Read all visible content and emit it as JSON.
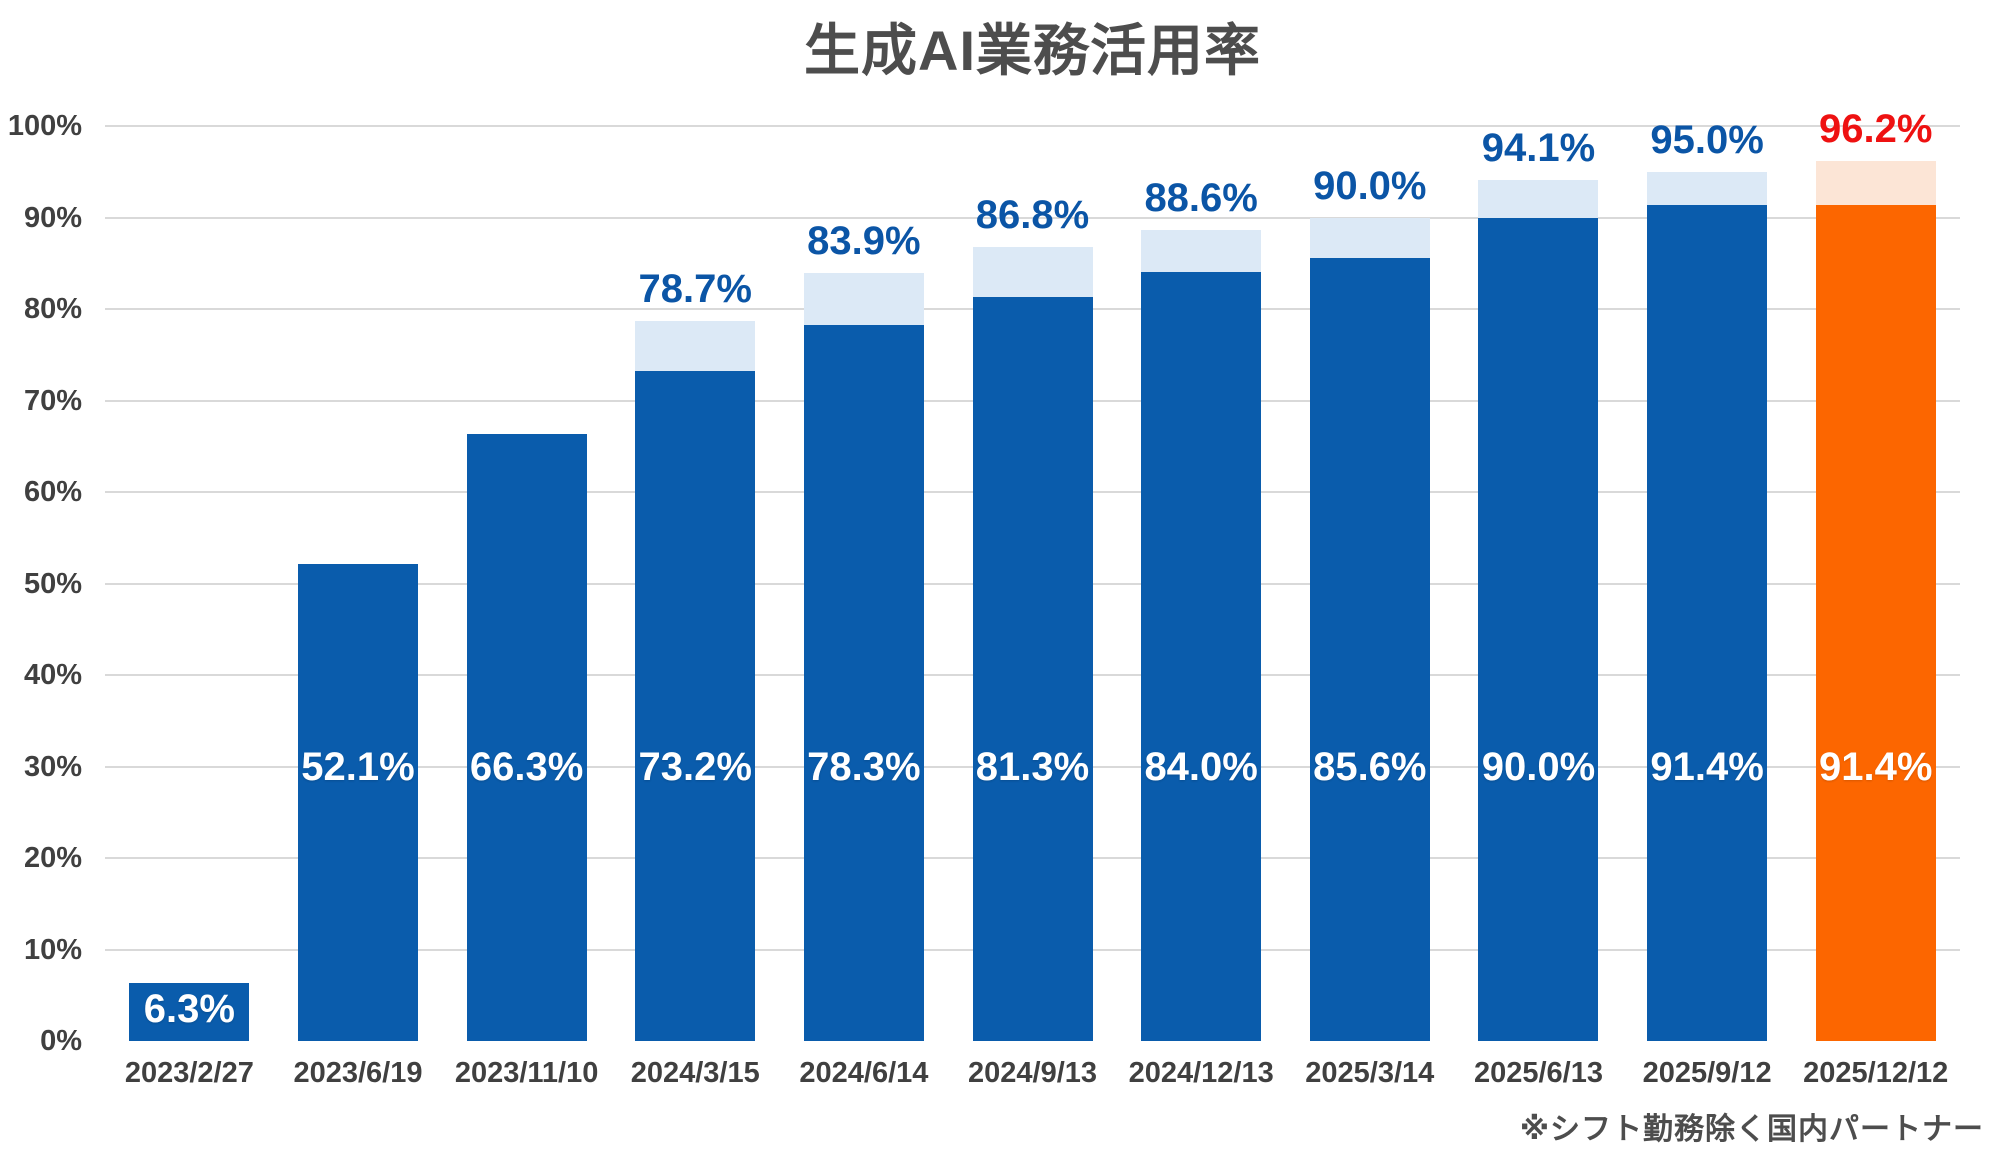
{
  "footnote": "※シフト勤務除く国内パートナー",
  "colors": {
    "bar_blue": "#0a5cac",
    "bar_blue_light": "#dce9f6",
    "bar_orange": "#fc6600",
    "bar_orange_light": "#fce5d6",
    "label_blue": "#0b55a6",
    "label_red": "#ee1111",
    "axis_text": "#404040",
    "gridline": "#d9d9d9",
    "inside_label": "#ffffff"
  },
  "chart_data": {
    "type": "bar",
    "stacked": true,
    "title": "生成AI業務活用率",
    "xlabel": "",
    "ylabel": "",
    "ylim": [
      0,
      100
    ],
    "grid": true,
    "legend": "none",
    "y_ticks": [
      "100%",
      "90%",
      "80%",
      "70%",
      "60%",
      "50%",
      "40%",
      "30%",
      "20%",
      "10%",
      "0%"
    ],
    "categories": [
      "2023/2/27",
      "2023/6/19",
      "2023/11/10",
      "2024/3/15",
      "2024/6/14",
      "2024/9/13",
      "2024/12/13",
      "2025/3/14",
      "2025/6/13",
      "2025/9/12",
      "2025/12/12"
    ],
    "bars": [
      {
        "date": "2023/2/27",
        "value": 6.3,
        "label": "6.3%",
        "total": null,
        "total_label": null,
        "highlight": false
      },
      {
        "date": "2023/6/19",
        "value": 52.1,
        "label": "52.1%",
        "total": null,
        "total_label": null,
        "highlight": false
      },
      {
        "date": "2023/11/10",
        "value": 66.3,
        "label": "66.3%",
        "total": null,
        "total_label": null,
        "highlight": false
      },
      {
        "date": "2024/3/15",
        "value": 73.2,
        "label": "73.2%",
        "total": 78.7,
        "total_label": "78.7%",
        "highlight": false
      },
      {
        "date": "2024/6/14",
        "value": 78.3,
        "label": "78.3%",
        "total": 83.9,
        "total_label": "83.9%",
        "highlight": false
      },
      {
        "date": "2024/9/13",
        "value": 81.3,
        "label": "81.3%",
        "total": 86.8,
        "total_label": "86.8%",
        "highlight": false
      },
      {
        "date": "2024/12/13",
        "value": 84.0,
        "label": "84.0%",
        "total": 88.6,
        "total_label": "88.6%",
        "highlight": false
      },
      {
        "date": "2025/3/14",
        "value": 85.6,
        "label": "85.6%",
        "total": 90.0,
        "total_label": "90.0%",
        "highlight": false
      },
      {
        "date": "2025/6/13",
        "value": 90.0,
        "label": "90.0%",
        "total": 94.1,
        "total_label": "94.1%",
        "highlight": false
      },
      {
        "date": "2025/9/12",
        "value": 91.4,
        "label": "91.4%",
        "total": 95.0,
        "total_label": "95.0%",
        "highlight": false
      },
      {
        "date": "2025/12/12",
        "value": 91.4,
        "label": "91.4%",
        "total": 96.2,
        "total_label": "96.2%",
        "highlight": true
      }
    ]
  }
}
